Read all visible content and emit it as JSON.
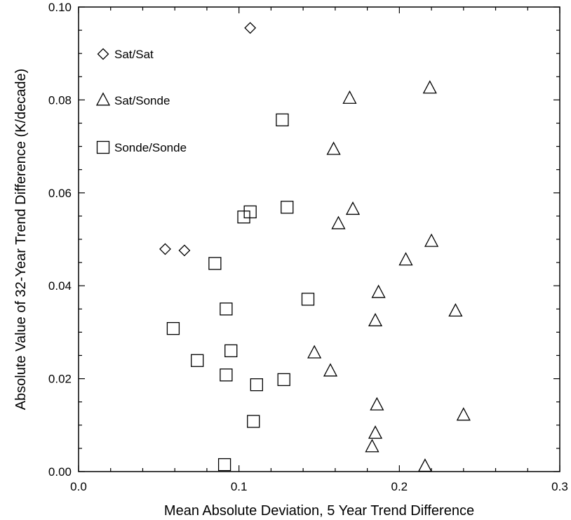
{
  "chart_data": {
    "type": "scatter",
    "xlabel": "Mean Absolute Deviation, 5 Year Trend Difference",
    "ylabel": "Absolute Value of 32-Year Trend Difference (K/decade)",
    "xlim": [
      0.0,
      0.3
    ],
    "ylim": [
      0.0,
      0.1
    ],
    "x_ticks": [
      0.0,
      0.1,
      0.2,
      0.3
    ],
    "x_tick_labels": [
      "0.0",
      "0.1",
      "0.2",
      "0.3"
    ],
    "y_ticks": [
      0.0,
      0.02,
      0.04,
      0.06,
      0.08,
      0.1
    ],
    "y_tick_labels": [
      "0.00",
      "0.02",
      "0.04",
      "0.06",
      "0.08",
      "0.10"
    ],
    "grid": false,
    "legend_position": "top-left",
    "series": [
      {
        "name": "Sat/Sat",
        "marker": "diamond",
        "points": [
          [
            0.107,
            0.0955
          ],
          [
            0.054,
            0.0479
          ],
          [
            0.066,
            0.0476
          ]
        ]
      },
      {
        "name": "Sat/Sonde",
        "marker": "triangle",
        "points": [
          [
            0.219,
            0.0825
          ],
          [
            0.169,
            0.0803
          ],
          [
            0.159,
            0.0693
          ],
          [
            0.171,
            0.0564
          ],
          [
            0.162,
            0.0533
          ],
          [
            0.22,
            0.0495
          ],
          [
            0.204,
            0.0455
          ],
          [
            0.187,
            0.0385
          ],
          [
            0.235,
            0.0345
          ],
          [
            0.185,
            0.0324
          ],
          [
            0.147,
            0.0255
          ],
          [
            0.157,
            0.0216
          ],
          [
            0.186,
            0.0143
          ],
          [
            0.24,
            0.0121
          ],
          [
            0.185,
            0.0082
          ],
          [
            0.183,
            0.0053
          ],
          [
            0.216,
            0.0011
          ]
        ]
      },
      {
        "name": "Sonde/Sonde",
        "marker": "square",
        "points": [
          [
            0.127,
            0.0757
          ],
          [
            0.13,
            0.0569
          ],
          [
            0.107,
            0.0559
          ],
          [
            0.103,
            0.0548
          ],
          [
            0.085,
            0.0448
          ],
          [
            0.143,
            0.0371
          ],
          [
            0.092,
            0.035
          ],
          [
            0.059,
            0.0308
          ],
          [
            0.095,
            0.026
          ],
          [
            0.074,
            0.0239
          ],
          [
            0.092,
            0.0208
          ],
          [
            0.111,
            0.0187
          ],
          [
            0.128,
            0.0198
          ],
          [
            0.109,
            0.0108
          ],
          [
            0.091,
            0.0015
          ]
        ]
      }
    ]
  }
}
